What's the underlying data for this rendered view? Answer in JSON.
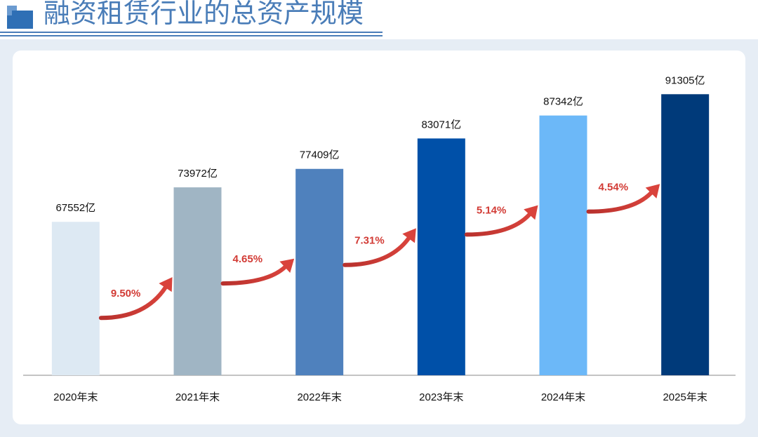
{
  "chart_data": {
    "type": "bar",
    "title": "融资租赁行业的总资产规模",
    "categories": [
      "2020年末",
      "2021年末",
      "2022年末",
      "2023年末",
      "2024年末",
      "2025年末"
    ],
    "values": [
      67552,
      73972,
      77409,
      83071,
      87342,
      91305
    ],
    "value_labels": [
      "67552亿",
      "73972亿",
      "77409亿",
      "83071亿",
      "87342亿",
      "91305亿"
    ],
    "colors": [
      "#dde9f3",
      "#a0b5c4",
      "#4f81bd",
      "#0050a8",
      "#6cb8f8",
      "#003a7a"
    ],
    "annotations": [
      "9.50%",
      "4.65%",
      "7.31%",
      "5.14%",
      "4.54%"
    ],
    "ylim": [
      39000,
      95000
    ]
  }
}
